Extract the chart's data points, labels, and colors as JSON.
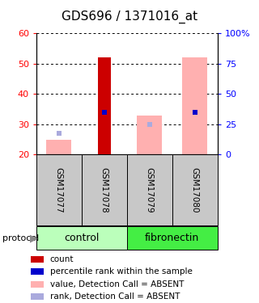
{
  "title": "GDS696 / 1371016_at",
  "samples": [
    "GSM17077",
    "GSM17078",
    "GSM17079",
    "GSM17080"
  ],
  "ylim_left": [
    20,
    60
  ],
  "ylim_right": [
    0,
    100
  ],
  "yticks_left": [
    20,
    30,
    40,
    50,
    60
  ],
  "yticks_right": [
    0,
    25,
    50,
    75,
    100
  ],
  "ytick_labels_right": [
    "0",
    "25",
    "50",
    "75",
    "100%"
  ],
  "red_bar_tops": [
    null,
    52,
    null,
    null
  ],
  "pink_bar_tops": [
    25,
    null,
    33,
    52
  ],
  "blue_square_y": [
    null,
    34,
    null,
    34
  ],
  "light_blue_square_y": [
    27,
    null,
    30,
    34
  ],
  "red_color": "#cc0000",
  "pink_color": "#ffb0b0",
  "blue_color": "#0000cc",
  "light_blue_color": "#aaaadd",
  "x_positions": [
    1,
    2,
    3,
    4
  ],
  "legend_items": [
    {
      "color": "#cc0000",
      "label": "count"
    },
    {
      "color": "#0000cc",
      "label": "percentile rank within the sample"
    },
    {
      "color": "#ffb0b0",
      "label": "value, Detection Call = ABSENT"
    },
    {
      "color": "#aaaadd",
      "label": "rank, Detection Call = ABSENT"
    }
  ],
  "bg_gray": "#c8c8c8",
  "bg_green_control": "#bbffbb",
  "bg_green_fibronectin": "#44ee44"
}
